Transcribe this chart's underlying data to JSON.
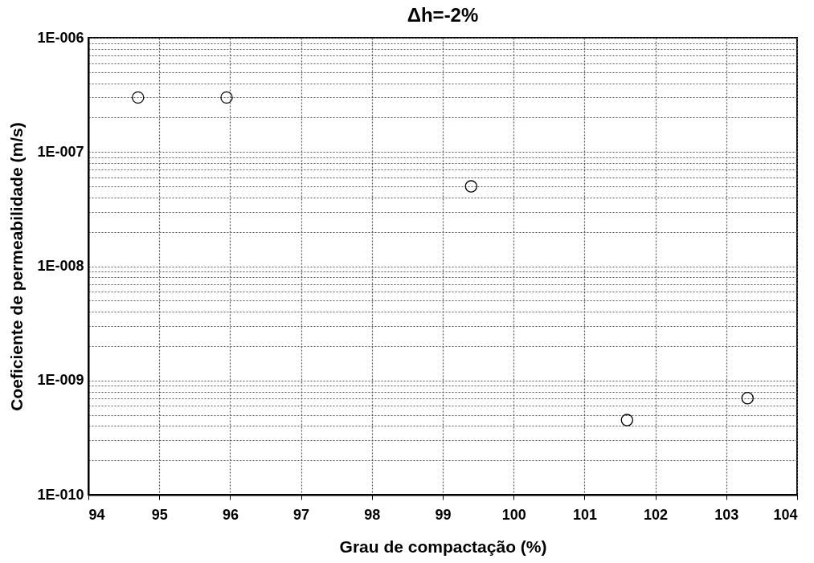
{
  "chart_data": {
    "type": "scatter",
    "title": "Δh=-2%",
    "xlabel": "Grau de compactação  (%)",
    "ylabel": "Coeficiente de permeabilidade  (m/s)",
    "x": [
      94.7,
      95.95,
      99.4,
      101.6,
      103.3
    ],
    "series": [
      {
        "color": "#000000",
        "values": [
          3e-07,
          3e-07,
          5e-08,
          4.5e-10,
          7e-10
        ]
      }
    ],
    "xlim": [
      94,
      104
    ],
    "xticks": [
      94,
      95,
      96,
      97,
      98,
      99,
      100,
      101,
      102,
      103,
      104
    ],
    "ylim": [
      1e-10,
      1e-06
    ],
    "yticks": [
      {
        "value": 1e-10,
        "label": "1E-010"
      },
      {
        "value": 2e-10,
        "label": null
      },
      {
        "value": 3e-10,
        "label": null
      },
      {
        "value": 4e-10,
        "label": null
      },
      {
        "value": 5e-10,
        "label": null
      },
      {
        "value": 6e-10,
        "label": null
      },
      {
        "value": 7e-10,
        "label": null
      },
      {
        "value": 8e-10,
        "label": null
      },
      {
        "value": 9e-10,
        "label": null
      },
      {
        "value": 1e-09,
        "label": "1E-009"
      },
      {
        "value": 2e-09,
        "label": null
      },
      {
        "value": 3e-09,
        "label": null
      },
      {
        "value": 4e-09,
        "label": null
      },
      {
        "value": 5e-09,
        "label": null
      },
      {
        "value": 6e-09,
        "label": null
      },
      {
        "value": 7e-09,
        "label": null
      },
      {
        "value": 8e-09,
        "label": null
      },
      {
        "value": 9e-09,
        "label": null
      },
      {
        "value": 1e-08,
        "label": "1E-008"
      },
      {
        "value": 2e-08,
        "label": null
      },
      {
        "value": 3e-08,
        "label": null
      },
      {
        "value": 4e-08,
        "label": null
      },
      {
        "value": 5e-08,
        "label": null
      },
      {
        "value": 6e-08,
        "label": null
      },
      {
        "value": 7e-08,
        "label": null
      },
      {
        "value": 8e-08,
        "label": null
      },
      {
        "value": 9e-08,
        "label": null
      },
      {
        "value": 1e-07,
        "label": "1E-007"
      },
      {
        "value": 2e-07,
        "label": null
      },
      {
        "value": 3e-07,
        "label": null
      },
      {
        "value": 4e-07,
        "label": null
      },
      {
        "value": 5e-07,
        "label": null
      },
      {
        "value": 6e-07,
        "label": null
      },
      {
        "value": 7e-07,
        "label": null
      },
      {
        "value": 8e-07,
        "label": null
      },
      {
        "value": 9e-07,
        "label": null
      },
      {
        "value": 1e-06,
        "label": "1E-006"
      }
    ],
    "log": true,
    "grid": true,
    "marker": "circle",
    "legend": false
  }
}
